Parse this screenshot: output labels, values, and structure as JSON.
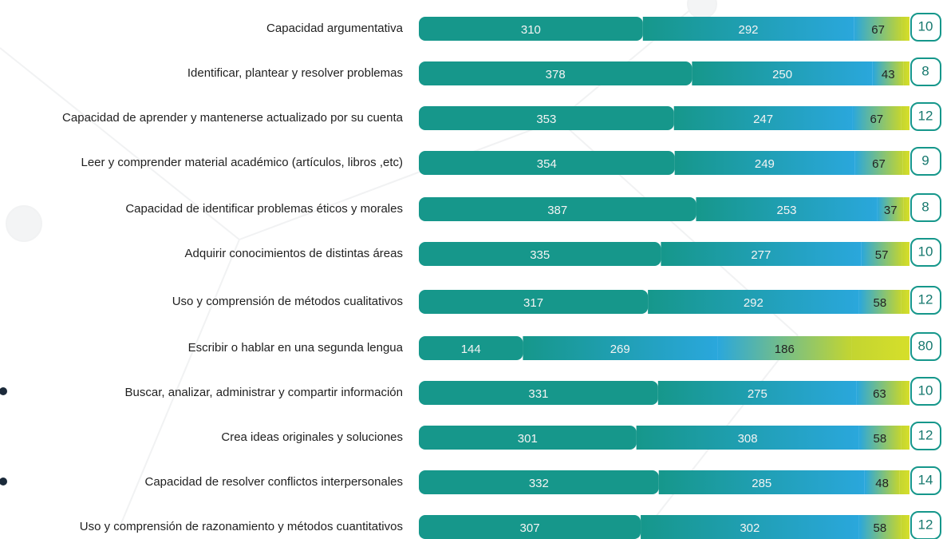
{
  "chart_data": {
    "type": "stacked-bar-horizontal",
    "categories": [
      "Capacidad argumentativa",
      "Identificar, plantear y resolver problemas",
      "Capacidad de aprender y mantenerse actualizado por su cuenta",
      "Leer y comprender material académico (artículos, libros ,etc)",
      "Capacidad de identificar problemas éticos y morales",
      "Adquirir conocimientos de distintas áreas",
      "Uso y comprensión de métodos cualitativos",
      "Escribir o hablar en una segunda lengua",
      "Buscar, analizar, administrar y compartir información",
      "Crea ideas originales y soluciones",
      "Capacidad de resolver conflictos interpersonales",
      "Uso y comprensión de razonamiento y métodos cuantitativos"
    ],
    "series": [
      {
        "color": "#16978b",
        "values": [
          310,
          378,
          353,
          354,
          387,
          335,
          317,
          144,
          331,
          301,
          332,
          307
        ]
      },
      {
        "color": "#2aa7dc",
        "values": [
          292,
          250,
          247,
          249,
          253,
          277,
          292,
          269,
          275,
          308,
          285,
          302
        ]
      },
      {
        "color": "#c3d531",
        "values": [
          67,
          43,
          67,
          67,
          37,
          57,
          58,
          186,
          63,
          58,
          48,
          58
        ]
      },
      {
        "color": "#d6df2a",
        "values": [
          10,
          8,
          12,
          9,
          8,
          10,
          12,
          80,
          10,
          12,
          14,
          12
        ]
      }
    ]
  }
}
